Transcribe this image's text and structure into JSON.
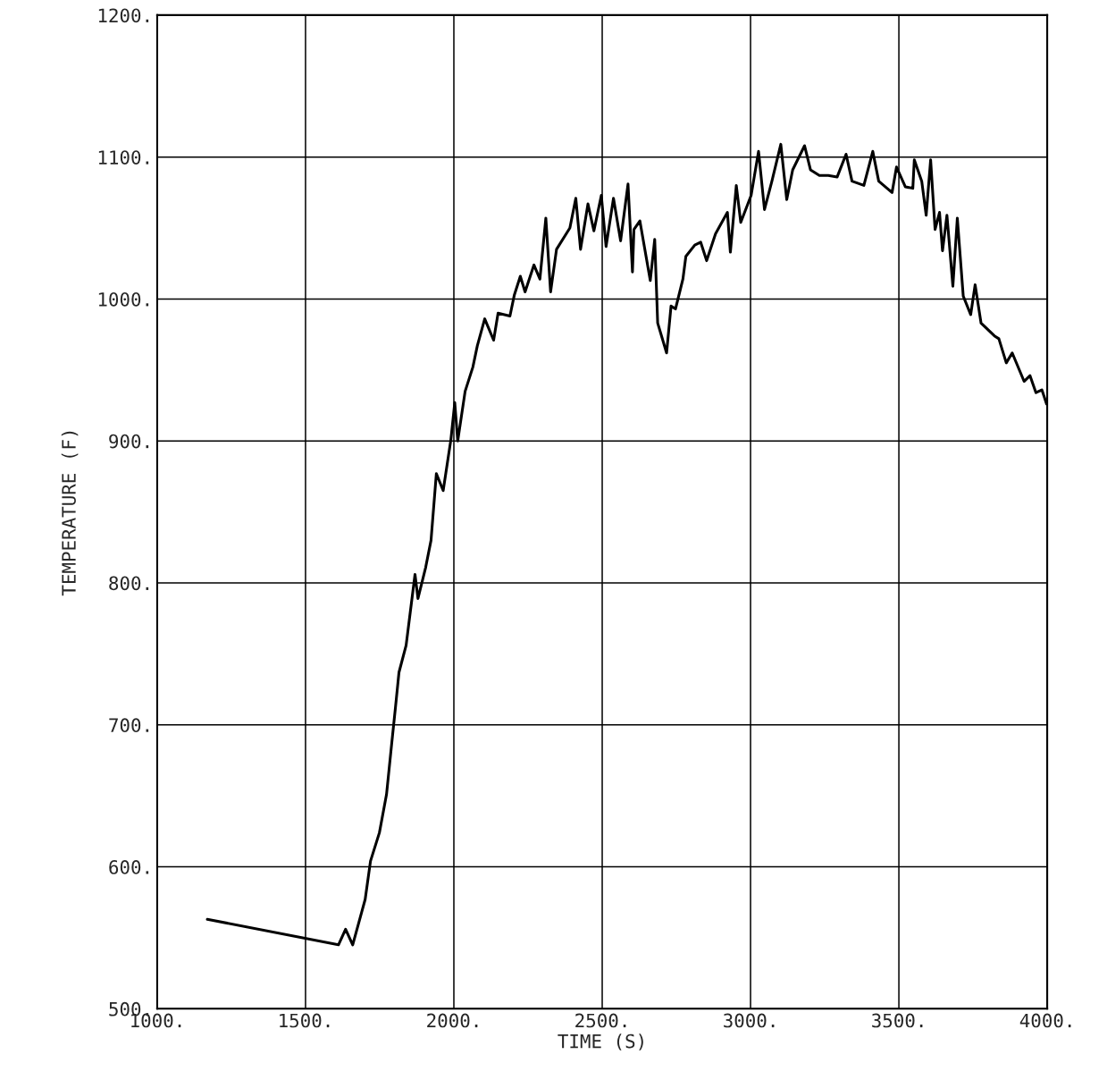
{
  "chart_data": {
    "type": "line",
    "xlabel": "TIME (S)",
    "ylabel": "TEMPERATURE (F)",
    "xlim": [
      1000,
      4000
    ],
    "ylim": [
      500,
      1200
    ],
    "xticks": [
      {
        "value": 1000,
        "label": "1000."
      },
      {
        "value": 1500,
        "label": "1500."
      },
      {
        "value": 2000,
        "label": "2000."
      },
      {
        "value": 2500,
        "label": "2500."
      },
      {
        "value": 3000,
        "label": "3000."
      },
      {
        "value": 3500,
        "label": "3500."
      },
      {
        "value": 4000,
        "label": "4000."
      }
    ],
    "yticks": [
      {
        "value": 500,
        "label": "500."
      },
      {
        "value": 600,
        "label": "600."
      },
      {
        "value": 700,
        "label": "700."
      },
      {
        "value": 800,
        "label": "800."
      },
      {
        "value": 900,
        "label": "900."
      },
      {
        "value": 1000,
        "label": "1000."
      },
      {
        "value": 1100,
        "label": "1100."
      },
      {
        "value": 1200,
        "label": "1200."
      }
    ],
    "grid": true,
    "marker": "none",
    "line_style": "solid",
    "series": [
      {
        "color": "#000000",
        "x": [
          1169,
          1611,
          1635,
          1659,
          1701,
          1719,
          1749,
          1773,
          1791,
          1803,
          1815,
          1839,
          1857,
          1869,
          1879,
          1905,
          1923,
          1941,
          1964,
          1990,
          2003,
          2013,
          2038,
          2064,
          2079,
          2104,
          2134,
          2149,
          2189,
          2204,
          2224,
          2240,
          2270,
          2290,
          2310,
          2326,
          2346,
          2391,
          2411,
          2427,
          2452,
          2472,
          2497,
          2513,
          2538,
          2562,
          2587,
          2602,
          2607,
          2627,
          2662,
          2677,
          2687,
          2717,
          2732,
          2747,
          2772,
          2782,
          2812,
          2832,
          2852,
          2882,
          2922,
          2932,
          2952,
          2967,
          3002,
          3027,
          3047,
          3072,
          3102,
          3122,
          3142,
          3182,
          3202,
          3232,
          3262,
          3292,
          3322,
          3342,
          3382,
          3412,
          3432,
          3477,
          3492,
          3522,
          3547,
          3552,
          3577,
          3592,
          3607,
          3622,
          3637,
          3647,
          3662,
          3682,
          3697,
          3717,
          3742,
          3757,
          3777,
          3822,
          3837,
          3862,
          3882,
          3922,
          3942,
          3962,
          3982,
          3998
        ],
        "values": [
          563,
          545,
          556,
          545,
          577,
          604,
          624,
          651,
          688,
          712,
          737,
          756,
          786,
          806,
          789,
          811,
          830,
          877,
          865,
          901,
          927,
          900,
          935,
          952,
          967,
          986,
          971,
          990,
          988,
          1003,
          1016,
          1005,
          1024,
          1014,
          1057,
          1005,
          1035,
          1050,
          1071,
          1035,
          1067,
          1048,
          1073,
          1037,
          1071,
          1041,
          1081,
          1019,
          1049,
          1055,
          1013,
          1042,
          983,
          962,
          995,
          993,
          1014,
          1030,
          1038,
          1040,
          1027,
          1046,
          1061,
          1033,
          1080,
          1054,
          1073,
          1104,
          1063,
          1083,
          1109,
          1070,
          1091,
          1108,
          1091,
          1087,
          1087,
          1086,
          1102,
          1083,
          1080,
          1104,
          1083,
          1075,
          1093,
          1079,
          1078,
          1098,
          1083,
          1059,
          1098,
          1049,
          1061,
          1034,
          1059,
          1009,
          1057,
          1002,
          989,
          1010,
          983,
          974,
          972,
          955,
          962,
          942,
          946,
          934,
          936,
          926
        ]
      }
    ]
  }
}
